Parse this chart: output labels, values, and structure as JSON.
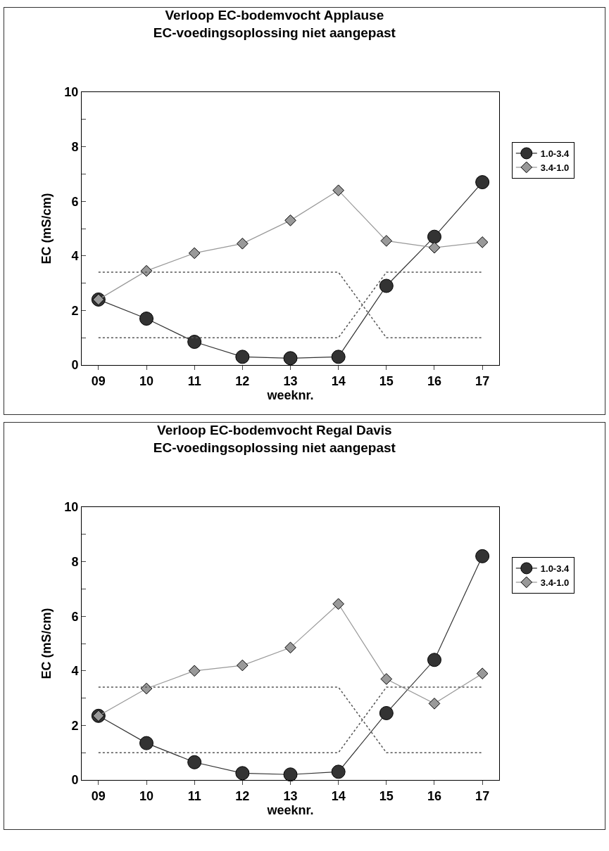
{
  "chart_data": [
    {
      "type": "line",
      "title": "Verloop EC-bodemvocht Applause\nEC-voedingsoplossing niet aangepast",
      "xlabel": "weeknr.",
      "ylabel": "EC (mS/cm)",
      "categories": [
        "09",
        "10",
        "11",
        "12",
        "13",
        "14",
        "15",
        "16",
        "17"
      ],
      "ylim": [
        0,
        10
      ],
      "yticks": [
        0,
        {
          "value": 1,
          "label": null
        },
        2,
        {
          "value": 3,
          "label": null
        },
        4,
        {
          "value": 5,
          "label": null
        },
        6,
        {
          "value": 7,
          "label": null
        },
        8,
        {
          "value": 9,
          "label": null
        },
        10
      ],
      "grid": false,
      "legend": "right",
      "series": [
        {
          "name": "1.0-3.4",
          "color": "#333333",
          "marker": "circle",
          "line_style": "solid",
          "values": [
            2.4,
            1.7,
            0.85,
            0.3,
            0.25,
            0.3,
            2.9,
            4.7,
            6.7
          ]
        },
        {
          "name": "3.4-1.0",
          "color": "#999999",
          "marker": "diamond",
          "line_style": "solid",
          "values": [
            2.4,
            3.45,
            4.1,
            4.45,
            5.3,
            6.4,
            4.55,
            4.3,
            4.5
          ]
        },
        {
          "color": "#555555",
          "marker": "none",
          "line_style": "dotted",
          "values": [
            1,
            1,
            1,
            1,
            1,
            1,
            3.4,
            3.4,
            3.4
          ]
        },
        {
          "color": "#555555",
          "marker": "none",
          "line_style": "dotted",
          "values": [
            3.4,
            3.4,
            3.4,
            3.4,
            3.4,
            3.4,
            1,
            1,
            1
          ]
        }
      ]
    },
    {
      "type": "line",
      "title": "Verloop EC-bodemvocht Regal Davis\nEC-voedingsoplossing niet aangepast",
      "xlabel": "weeknr.",
      "ylabel": "EC (mS/cm)",
      "categories": [
        "09",
        "10",
        "11",
        "12",
        "13",
        "14",
        "15",
        "16",
        "17"
      ],
      "ylim": [
        0,
        10
      ],
      "yticks": [
        0,
        {
          "value": 1,
          "label": null
        },
        2,
        {
          "value": 3,
          "label": null
        },
        4,
        {
          "value": 5,
          "label": null
        },
        6,
        {
          "value": 7,
          "label": null
        },
        8,
        {
          "value": 9,
          "label": null
        },
        10
      ],
      "grid": false,
      "legend": "right",
      "series": [
        {
          "name": "1.0-3.4",
          "color": "#333333",
          "marker": "circle",
          "line_style": "solid",
          "values": [
            2.35,
            1.35,
            0.65,
            0.25,
            0.2,
            0.3,
            2.45,
            4.4,
            8.2
          ]
        },
        {
          "name": "3.4-1.0",
          "color": "#999999",
          "marker": "diamond",
          "line_style": "solid",
          "values": [
            2.35,
            3.35,
            4.0,
            4.2,
            4.85,
            6.45,
            3.7,
            2.8,
            3.9
          ]
        },
        {
          "color": "#555555",
          "marker": "none",
          "line_style": "dotted",
          "values": [
            1,
            1,
            1,
            1,
            1,
            1,
            3.4,
            3.4,
            3.4
          ]
        },
        {
          "color": "#555555",
          "marker": "none",
          "line_style": "dotted",
          "values": [
            3.4,
            3.4,
            3.4,
            3.4,
            3.4,
            3.4,
            1,
            1,
            1
          ]
        }
      ]
    }
  ]
}
